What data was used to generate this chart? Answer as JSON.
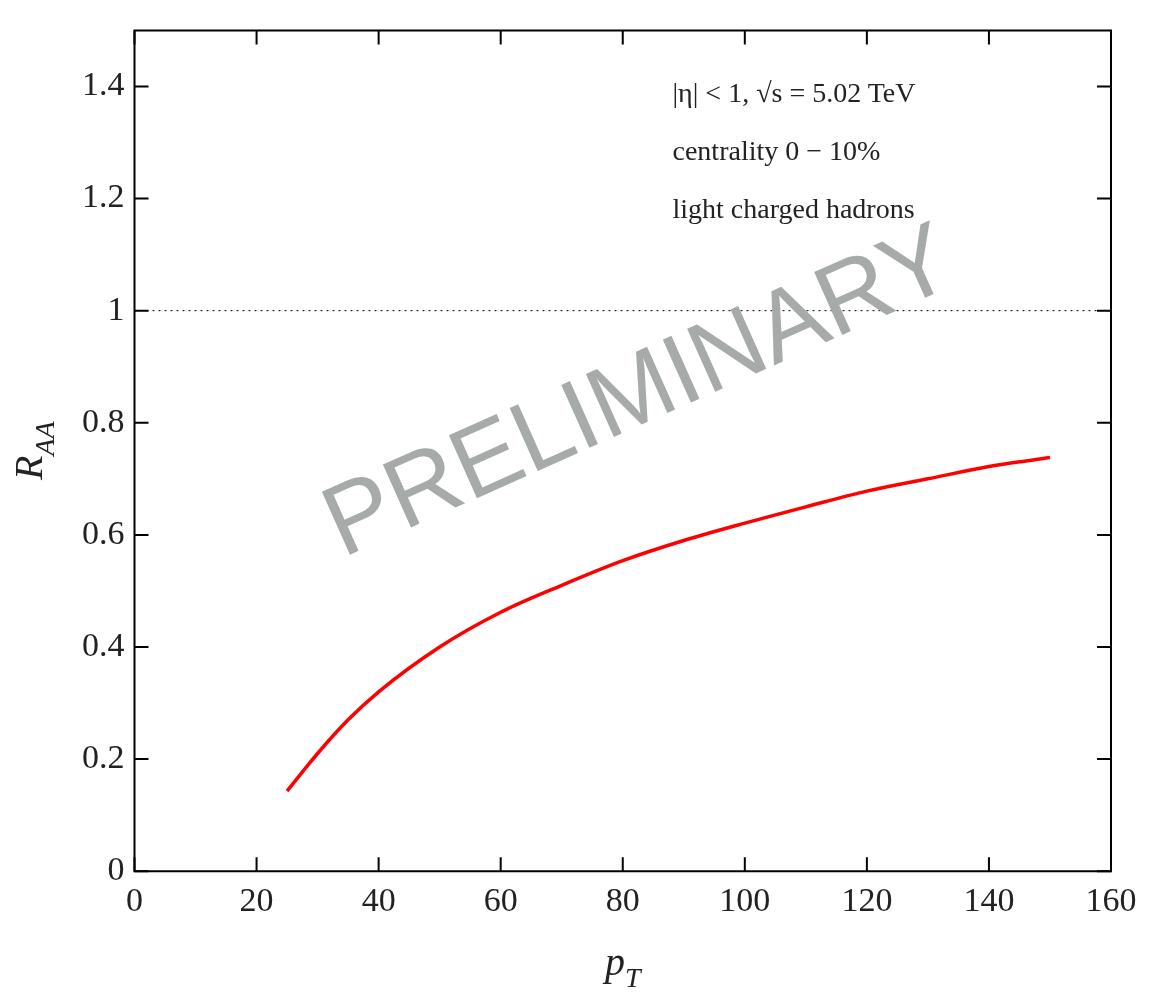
{
  "chart_data": {
    "type": "line",
    "xlabel": "p$_{T}$",
    "ylabel": "R$_{AA}$",
    "annotations": [
      "|η| < 1, √s = 5.02 TeV",
      "centrality 0 − 10%",
      "light charged hadrons",
      "PRELIMINARY"
    ],
    "series": [
      {
        "color": "#ff0000",
        "x": [
          25,
          30,
          35,
          40,
          50,
          60,
          70,
          80,
          90,
          100,
          110,
          120,
          130,
          140,
          150
        ],
        "values": [
          0.143,
          0.21,
          0.27,
          0.32,
          0.4,
          0.462,
          0.51,
          0.554,
          0.59,
          0.621,
          0.65,
          0.678,
          0.7,
          0.722,
          0.738
        ]
      }
    ],
    "xlim": [
      0,
      160
    ],
    "xticks": [
      0,
      20,
      40,
      60,
      80,
      100,
      120,
      140,
      160
    ],
    "ylim": [
      0,
      1.5
    ],
    "yticks": [
      0,
      0.2,
      0.4,
      0.6,
      0.8,
      1,
      1.2,
      1.4
    ],
    "ref_lines": [
      {
        "axis": "y",
        "value": 1,
        "color": "#000000",
        "line_style": "dotted"
      }
    ],
    "grid": false,
    "legend": false,
    "marker": "none",
    "line_style": "solid"
  }
}
